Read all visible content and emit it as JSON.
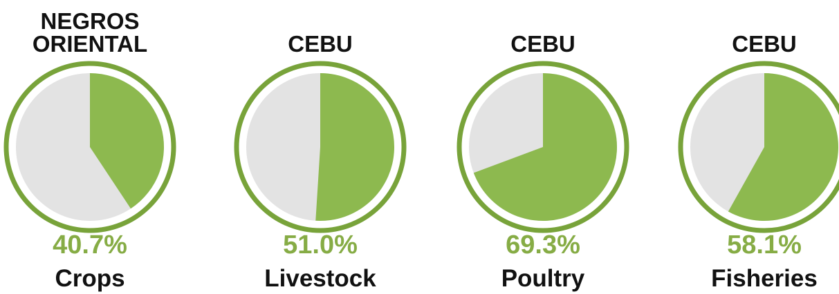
{
  "chart_data": [
    {
      "type": "pie",
      "title": "NEGROS ORIENTAL",
      "categories": [
        "Crops"
      ],
      "values": [
        40.7
      ],
      "value_labels": [
        "40.7%"
      ],
      "color": "#8db94f"
    },
    {
      "type": "pie",
      "title": "CEBU",
      "categories": [
        "Livestock"
      ],
      "values": [
        51.0
      ],
      "value_labels": [
        "51.0%"
      ],
      "color": "#8db94f"
    },
    {
      "type": "pie",
      "title": "CEBU",
      "categories": [
        "Poultry"
      ],
      "values": [
        69.3
      ],
      "value_labels": [
        "69.3%"
      ],
      "color": "#8db94f"
    },
    {
      "type": "pie",
      "title": "CEBU",
      "categories": [
        "Fisheries"
      ],
      "values": [
        58.1
      ],
      "value_labels": [
        "58.1%"
      ],
      "color": "#8db94f"
    }
  ]
}
